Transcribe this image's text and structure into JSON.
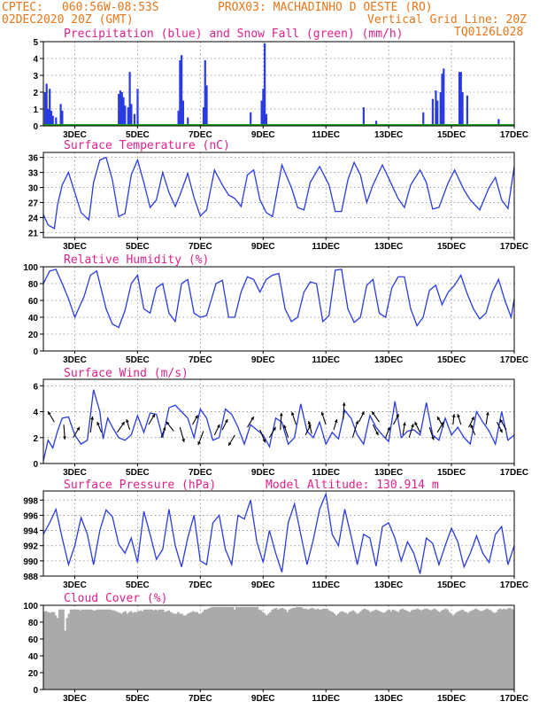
{
  "header": {
    "line1_left": "CPTEC:",
    "line1_coords": "060:56W-08:53S",
    "line1_station": "PROX03: MACHADINHO D OESTE (RO)",
    "line2_left": "02DEC2020 20Z (GMT)",
    "line2_right": "Vertical Grid Line: 20Z",
    "code": "TQ0126L028"
  },
  "x_ticks": [
    "3DEC",
    "5DEC",
    "7DEC",
    "9DEC",
    "11DEC",
    "13DEC",
    "15DEC",
    "17DEC"
  ],
  "chart_data": [
    {
      "id": "precip",
      "type": "bar",
      "title": "Precipitation (blue) and Snow Fall (green) (mm/h)",
      "ylim": [
        0,
        5
      ],
      "yticks": [
        0,
        1,
        2,
        3,
        4,
        5
      ],
      "x_unit": "days since 02DEC2020 20Z",
      "bars": [
        [
          0.05,
          2.0
        ],
        [
          0.1,
          2.5
        ],
        [
          0.15,
          1.0
        ],
        [
          0.2,
          2.2
        ],
        [
          0.25,
          0.9
        ],
        [
          0.3,
          0.6
        ],
        [
          0.4,
          0.5
        ],
        [
          0.55,
          1.3
        ],
        [
          0.6,
          0.9
        ],
        [
          2.4,
          1.9
        ],
        [
          2.45,
          2.1
        ],
        [
          2.5,
          2.0
        ],
        [
          2.55,
          1.7
        ],
        [
          2.6,
          1.2
        ],
        [
          2.7,
          1.1
        ],
        [
          2.75,
          3.2
        ],
        [
          2.8,
          1.3
        ],
        [
          2.9,
          0.7
        ],
        [
          3.0,
          2.2
        ],
        [
          4.3,
          0.9
        ],
        [
          4.35,
          3.9
        ],
        [
          4.4,
          4.2
        ],
        [
          4.45,
          1.5
        ],
        [
          4.6,
          0.5
        ],
        [
          5.1,
          1.1
        ],
        [
          5.15,
          3.9
        ],
        [
          5.2,
          2.4
        ],
        [
          6.6,
          0.8
        ],
        [
          6.95,
          1.5
        ],
        [
          7.0,
          2.2
        ],
        [
          7.05,
          4.9
        ],
        [
          7.1,
          0.7
        ],
        [
          10.2,
          1.1
        ],
        [
          10.6,
          0.3
        ],
        [
          12.1,
          0.8
        ],
        [
          12.4,
          1.6
        ],
        [
          12.5,
          2.1
        ],
        [
          12.55,
          1.5
        ],
        [
          12.65,
          2.0
        ],
        [
          12.7,
          3.1
        ],
        [
          12.75,
          3.4
        ],
        [
          13.25,
          3.2
        ],
        [
          13.3,
          3.2
        ],
        [
          13.35,
          2.0
        ],
        [
          13.5,
          1.8
        ],
        [
          14.5,
          0.4
        ]
      ],
      "snow": "0"
    },
    {
      "id": "temp",
      "type": "line",
      "title": "Surface Temperature (nC)",
      "ylim": [
        20,
        37
      ],
      "yticks": [
        21,
        24,
        27,
        30,
        33,
        36
      ],
      "x": [
        0,
        0.15,
        0.35,
        0.45,
        0.6,
        0.8,
        1.0,
        1.2,
        1.45,
        1.6,
        1.8,
        2.0,
        2.2,
        2.4,
        2.6,
        2.8,
        3.0,
        3.2,
        3.4,
        3.6,
        3.8,
        4.0,
        4.2,
        4.35,
        4.6,
        4.8,
        5.0,
        5.2,
        5.45,
        5.7,
        5.9,
        6.1,
        6.3,
        6.5,
        6.7,
        6.9,
        7.1,
        7.3,
        7.6,
        7.9,
        8.1,
        8.3,
        8.5,
        8.8,
        9.1,
        9.3,
        9.5,
        9.7,
        9.9,
        10.1,
        10.3,
        10.5,
        10.8,
        11.1,
        11.3,
        11.5,
        11.7,
        12.0,
        12.2,
        12.4,
        12.6,
        12.9,
        13.1,
        13.4,
        13.6,
        13.9,
        14.2,
        14.4,
        14.6,
        14.8,
        15.0
      ],
      "values": [
        24.6,
        22.5,
        21.8,
        26.5,
        30.5,
        33.0,
        29.0,
        25.0,
        23.5,
        31.0,
        35.5,
        36.0,
        31.5,
        24.2,
        24.8,
        32.5,
        35.5,
        31.0,
        26.0,
        27.5,
        33.0,
        29.0,
        26.2,
        28.5,
        32.8,
        28.0,
        24.3,
        25.5,
        33.5,
        30.5,
        28.5,
        27.8,
        26.2,
        32.5,
        33.5,
        27.5,
        25.0,
        24.2,
        34.5,
        30.0,
        26.0,
        25.5,
        31.0,
        34.2,
        30.5,
        25.2,
        25.2,
        31.5,
        35.0,
        32.5,
        27.0,
        30.5,
        34.5,
        30.5,
        27.8,
        26.0,
        30.5,
        33.5,
        31.0,
        25.7,
        26.0,
        31.0,
        33.5,
        29.5,
        27.5,
        25.5,
        30.0,
        32.0,
        27.5,
        25.8,
        34.2
      ]
    },
    {
      "id": "rh",
      "type": "line",
      "title": "Relative Humidity (%)",
      "ylim": [
        0,
        100
      ],
      "yticks": [
        0,
        20,
        40,
        60,
        80,
        100
      ],
      "x": [
        0,
        0.2,
        0.4,
        0.6,
        0.8,
        1.0,
        1.3,
        1.5,
        1.7,
        2.0,
        2.2,
        2.4,
        2.6,
        2.8,
        3.0,
        3.2,
        3.4,
        3.6,
        3.8,
        4.0,
        4.2,
        4.4,
        4.6,
        4.8,
        5.0,
        5.2,
        5.5,
        5.7,
        5.9,
        6.1,
        6.3,
        6.5,
        6.7,
        6.9,
        7.1,
        7.3,
        7.5,
        7.7,
        7.9,
        8.1,
        8.3,
        8.5,
        8.7,
        8.9,
        9.1,
        9.3,
        9.5,
        9.7,
        9.9,
        10.1,
        10.3,
        10.5,
        10.7,
        10.9,
        11.1,
        11.3,
        11.5,
        11.7,
        11.9,
        12.1,
        12.3,
        12.5,
        12.7,
        12.9,
        13.1,
        13.3,
        13.5,
        13.7,
        13.9,
        14.1,
        14.3,
        14.5,
        14.7,
        14.9,
        15.0
      ],
      "values": [
        80,
        95,
        97,
        80,
        62,
        40,
        65,
        90,
        95,
        50,
        32,
        28,
        48,
        80,
        90,
        50,
        45,
        75,
        80,
        45,
        35,
        80,
        85,
        45,
        40,
        42,
        80,
        84,
        40,
        40,
        70,
        88,
        85,
        70,
        85,
        90,
        92,
        50,
        35,
        40,
        70,
        82,
        80,
        35,
        42,
        96,
        97,
        50,
        34,
        40,
        78,
        85,
        45,
        40,
        75,
        88,
        88,
        50,
        30,
        40,
        72,
        78,
        55,
        70,
        78,
        90,
        68,
        50,
        38,
        45,
        70,
        85,
        60,
        40,
        62
      ]
    },
    {
      "id": "wind",
      "type": "line",
      "title": "Surface Wind (m/s)",
      "ylim": [
        0,
        6.5
      ],
      "yticks": [
        0,
        2,
        4,
        6
      ],
      "x": [
        0,
        0.15,
        0.3,
        0.45,
        0.6,
        0.8,
        1.0,
        1.2,
        1.4,
        1.6,
        1.8,
        1.9,
        2.05,
        2.2,
        2.4,
        2.6,
        2.8,
        3.0,
        3.2,
        3.4,
        3.6,
        3.8,
        4.0,
        4.2,
        4.4,
        4.6,
        4.8,
        5.0,
        5.2,
        5.4,
        5.6,
        5.8,
        6.0,
        6.2,
        6.4,
        6.6,
        6.8,
        7.0,
        7.2,
        7.4,
        7.6,
        7.8,
        8.0,
        8.2,
        8.4,
        8.6,
        8.8,
        9.0,
        9.2,
        9.4,
        9.6,
        9.8,
        10.0,
        10.2,
        10.4,
        10.6,
        10.8,
        11.0,
        11.2,
        11.4,
        11.6,
        11.8,
        12.0,
        12.2,
        12.4,
        12.6,
        12.8,
        13.0,
        13.2,
        13.4,
        13.6,
        13.8,
        14.0,
        14.2,
        14.4,
        14.6,
        14.8,
        15.0
      ],
      "values": [
        0.2,
        1.8,
        1.2,
        2.5,
        3.5,
        3.6,
        2.2,
        1.5,
        1.8,
        5.7,
        4.0,
        1.9,
        3.5,
        2.8,
        2.0,
        1.8,
        2.2,
        3.7,
        2.4,
        3.9,
        3.8,
        2.0,
        4.3,
        4.5,
        4.0,
        3.5,
        2.0,
        4.2,
        3.5,
        1.8,
        2.0,
        4.2,
        3.8,
        2.8,
        1.5,
        3.0,
        2.6,
        2.2,
        1.3,
        3.5,
        3.2,
        1.5,
        2.0,
        4.6,
        2.5,
        2.0,
        3.2,
        1.5,
        2.4,
        1.9,
        4.1,
        3.5,
        2.2,
        1.5,
        3.7,
        2.8,
        2.2,
        1.7,
        4.8,
        2.0,
        2.5,
        2.6,
        2.2,
        4.7,
        2.2,
        1.8,
        3.5,
        2.2,
        2.8,
        2.0,
        1.5,
        4.0,
        3.2,
        2.5,
        1.5,
        4.0,
        1.8,
        2.2
      ],
      "arrows": [
        [
          0.35,
          3.2,
          -0.6,
          1.0
        ],
        [
          0.65,
          3.0,
          0.1,
          -1.4
        ],
        [
          0.95,
          2.0,
          0.6,
          1.0
        ],
        [
          1.5,
          2.4,
          0.2,
          1.5
        ],
        [
          1.85,
          2.4,
          -0.4,
          1.0
        ],
        [
          2.35,
          2.4,
          0.7,
          1.0
        ],
        [
          2.75,
          2.6,
          -0.3,
          1.0
        ],
        [
          3.35,
          3.0,
          0.6,
          1.0
        ],
        [
          3.75,
          2.0,
          0.4,
          1.0
        ],
        [
          4.15,
          2.5,
          -0.7,
          0.9
        ],
        [
          4.35,
          2.8,
          0.4,
          -1.4
        ],
        [
          4.75,
          3.0,
          0.5,
          0.9
        ],
        [
          5.1,
          2.5,
          -0.5,
          -1.3
        ],
        [
          5.45,
          2.2,
          0.5,
          1.0
        ],
        [
          5.7,
          2.6,
          0.5,
          1.0
        ],
        [
          6.1,
          2.2,
          -0.6,
          -1.0
        ],
        [
          6.5,
          2.8,
          0.6,
          1.0
        ],
        [
          6.9,
          2.6,
          0.5,
          -1.2
        ],
        [
          7.2,
          2.0,
          0.6,
          1.0
        ],
        [
          7.55,
          2.6,
          0.1,
          1.6
        ],
        [
          7.8,
          2.0,
          -0.4,
          1.2
        ],
        [
          8.05,
          3.0,
          -0.4,
          1.2
        ],
        [
          8.35,
          2.2,
          0.5,
          1.0
        ],
        [
          8.55,
          2.3,
          -0.3,
          1.2
        ],
        [
          9.0,
          3.0,
          -0.4,
          1.2
        ],
        [
          9.25,
          2.6,
          0.3,
          1.0
        ],
        [
          9.55,
          3.4,
          0.1,
          1.6
        ],
        [
          9.85,
          2.0,
          0.5,
          1.6
        ],
        [
          10.05,
          3.2,
          0.5,
          1.0
        ],
        [
          10.5,
          3.0,
          0.5,
          -1.0
        ],
        [
          10.7,
          3.2,
          -0.7,
          1.0
        ],
        [
          10.9,
          2.0,
          0.4,
          1.0
        ],
        [
          11.15,
          3.0,
          0.5,
          1.0
        ],
        [
          11.45,
          2.2,
          0.2,
          1.2
        ],
        [
          11.65,
          2.0,
          0.4,
          1.3
        ],
        [
          12.0,
          2.4,
          -0.5,
          1.0
        ],
        [
          12.3,
          2.8,
          0.4,
          -1.2
        ],
        [
          12.55,
          2.4,
          0.6,
          1.0
        ],
        [
          12.75,
          2.8,
          -0.6,
          1.0
        ],
        [
          13.05,
          3.0,
          0.1,
          1.0
        ],
        [
          13.3,
          3.0,
          -0.3,
          1.0
        ],
        [
          13.55,
          2.8,
          0.5,
          1.0
        ],
        [
          13.75,
          2.2,
          -0.4,
          1.0
        ],
        [
          14.1,
          3.0,
          0.2,
          1.2
        ],
        [
          14.45,
          3.2,
          0.5,
          -1.0
        ],
        [
          14.75,
          2.6,
          -0.6,
          1.0
        ]
      ]
    },
    {
      "id": "pressure",
      "type": "line",
      "title": "Surface Pressure (hPa)",
      "subtitle": "Model Altitude: 130.914  m",
      "ylim": [
        988,
        999.2
      ],
      "yticks": [
        988,
        990,
        992,
        994,
        996,
        998
      ],
      "x": [
        0,
        0.2,
        0.4,
        0.6,
        0.8,
        1.0,
        1.2,
        1.4,
        1.6,
        1.8,
        2.0,
        2.2,
        2.4,
        2.6,
        2.8,
        3.0,
        3.2,
        3.4,
        3.6,
        3.8,
        4.0,
        4.2,
        4.4,
        4.6,
        4.8,
        5.0,
        5.2,
        5.4,
        5.6,
        5.8,
        6.0,
        6.2,
        6.4,
        6.6,
        6.8,
        7.0,
        7.2,
        7.4,
        7.6,
        7.8,
        8.0,
        8.2,
        8.4,
        8.6,
        8.8,
        9.0,
        9.2,
        9.4,
        9.6,
        9.8,
        10.0,
        10.2,
        10.4,
        10.6,
        10.8,
        11.0,
        11.2,
        11.4,
        11.6,
        11.8,
        12.0,
        12.2,
        12.4,
        12.6,
        12.8,
        13.0,
        13.2,
        13.4,
        13.6,
        13.8,
        14.0,
        14.2,
        14.4,
        14.6,
        14.8,
        15.0
      ],
      "values": [
        993.5,
        995.0,
        996.8,
        993.0,
        989.5,
        992.0,
        995.7,
        993.5,
        989.5,
        994.0,
        996.7,
        995.8,
        992.2,
        991.0,
        993.0,
        989.8,
        996.5,
        993.5,
        990.2,
        991.5,
        996.8,
        992.0,
        989.2,
        993.0,
        996.0,
        990.0,
        989.5,
        995.0,
        996.0,
        991.5,
        989.5,
        996.0,
        995.5,
        998.0,
        992.5,
        989.8,
        994.0,
        991.0,
        988.5,
        995.0,
        997.5,
        993.5,
        989.5,
        992.8,
        996.8,
        998.8,
        993.5,
        992.0,
        996.8,
        993.3,
        989.5,
        993.5,
        993.0,
        989.3,
        994.5,
        995.0,
        993.0,
        990.0,
        992.5,
        991.0,
        988.3,
        993.0,
        992.3,
        989.5,
        992.0,
        994.3,
        992.5,
        989.2,
        991.0,
        993.3,
        991.0,
        989.8,
        993.5,
        994.5,
        989.5,
        992.0
      ]
    },
    {
      "id": "cloud",
      "type": "area",
      "title": "Cloud Cover (%)",
      "ylim": [
        0,
        100
      ],
      "yticks": [
        0,
        20,
        40,
        60,
        80,
        100
      ],
      "color": "#aaaaaa",
      "values": [
        93,
        93,
        92,
        91,
        92,
        92,
        88,
        85,
        95,
        95,
        95,
        70,
        85,
        90,
        95,
        95,
        95,
        95,
        95,
        94,
        95,
        95,
        95,
        95,
        95,
        95,
        94,
        94,
        95,
        95,
        95,
        95,
        95,
        95,
        95,
        95,
        94,
        94,
        93,
        92,
        91,
        90,
        92,
        93,
        90,
        92,
        93,
        91,
        92,
        92,
        93,
        94,
        93,
        95,
        95,
        95,
        95,
        95,
        94,
        95,
        94,
        95,
        95,
        95,
        92,
        93,
        94,
        92,
        91,
        90,
        90,
        92,
        90,
        90,
        88,
        88,
        90,
        91,
        92,
        93,
        92,
        92,
        90,
        90,
        92,
        95,
        95,
        96,
        97,
        98,
        98,
        98,
        98,
        98,
        98,
        98,
        98,
        98,
        98,
        98,
        98,
        95,
        98,
        98,
        98,
        98,
        98,
        98,
        98,
        98,
        98,
        98,
        98,
        98,
        95,
        94,
        92,
        90,
        88,
        90,
        92,
        95,
        96,
        97,
        95,
        96,
        97,
        96,
        95,
        92,
        95,
        96,
        97,
        97,
        98,
        98,
        98,
        97,
        96,
        96,
        95,
        96,
        97,
        96,
        95,
        96,
        95,
        95,
        96,
        96,
        96,
        94,
        93,
        92,
        90,
        88,
        90,
        92,
        93,
        92,
        91,
        90,
        92,
        93,
        94,
        92,
        90,
        91,
        93,
        95,
        96,
        95,
        94,
        92,
        93,
        94,
        95,
        94,
        93,
        92,
        91,
        92,
        94,
        95,
        93,
        95,
        94,
        93,
        92,
        95,
        96,
        95,
        94,
        93,
        92,
        94,
        95,
        95,
        96,
        95,
        94,
        95,
        96,
        96,
        95,
        94,
        95,
        96,
        95,
        93,
        92,
        94,
        95,
        96,
        95,
        92,
        90,
        88,
        90,
        92,
        93,
        94,
        95,
        93,
        92,
        91,
        93,
        94,
        95,
        96,
        95,
        94,
        93,
        94,
        95,
        96,
        95,
        94,
        92,
        91,
        92,
        95,
        96,
        95,
        96,
        95,
        96,
        97,
        96,
        95
      ]
    }
  ]
}
